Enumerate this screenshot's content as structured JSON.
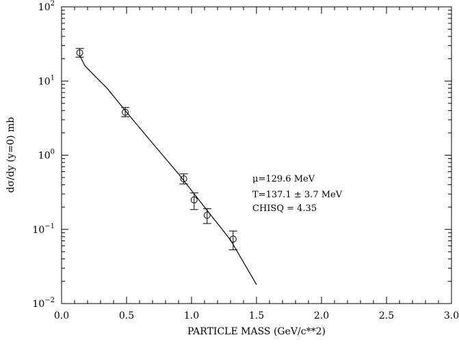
{
  "chart_data": {
    "type": "scatter",
    "xlabel": "PARTICLE MASS (GeV/c**2)",
    "ylabel": "dσ/dy (y=0)  mb",
    "xlim": [
      0.0,
      3.0
    ],
    "ylim": [
      0.01,
      100
    ],
    "yscale": "log",
    "x_ticks": [
      {
        "v": 0.0,
        "label": "0.0"
      },
      {
        "v": 0.5,
        "label": "0.5"
      },
      {
        "v": 1.0,
        "label": "1.0"
      },
      {
        "v": 1.5,
        "label": "1.5"
      },
      {
        "v": 2.0,
        "label": "2.0"
      },
      {
        "v": 2.5,
        "label": "2.5"
      },
      {
        "v": 3.0,
        "label": "3.0"
      }
    ],
    "y_ticks": [
      {
        "v": 0.01,
        "base": "10",
        "exp": "−2"
      },
      {
        "v": 0.1,
        "base": "10",
        "exp": "−1"
      },
      {
        "v": 1,
        "base": "10",
        "exp": "0"
      },
      {
        "v": 10,
        "base": "10",
        "exp": "1"
      },
      {
        "v": 100,
        "base": "10",
        "exp": "2"
      }
    ],
    "series": [
      {
        "points": [
          {
            "x": 0.14,
            "y": 24.0,
            "ylo": 21.0,
            "yhi": 27.5
          },
          {
            "x": 0.49,
            "y": 3.8,
            "ylo": 3.3,
            "yhi": 4.4
          },
          {
            "x": 0.94,
            "y": 0.48,
            "ylo": 0.41,
            "yhi": 0.56
          },
          {
            "x": 1.02,
            "y": 0.25,
            "ylo": 0.185,
            "yhi": 0.31
          },
          {
            "x": 1.12,
            "y": 0.155,
            "ylo": 0.12,
            "yhi": 0.19
          },
          {
            "x": 1.32,
            "y": 0.074,
            "ylo": 0.053,
            "yhi": 0.095
          }
        ]
      }
    ],
    "fit_curve": [
      [
        0.14,
        22.0
      ],
      [
        0.18,
        16.0
      ],
      [
        0.25,
        12.0
      ],
      [
        0.35,
        8.0
      ],
      [
        0.5,
        3.8
      ],
      [
        0.7,
        1.45
      ],
      [
        0.9,
        0.56
      ],
      [
        1.1,
        0.2
      ],
      [
        1.3,
        0.072
      ],
      [
        1.5,
        0.018
      ]
    ],
    "annotations": [
      "μ=129.6 MeV",
      "T=137.1 ± 3.7 MeV",
      "CHISQ = 4.35"
    ]
  }
}
